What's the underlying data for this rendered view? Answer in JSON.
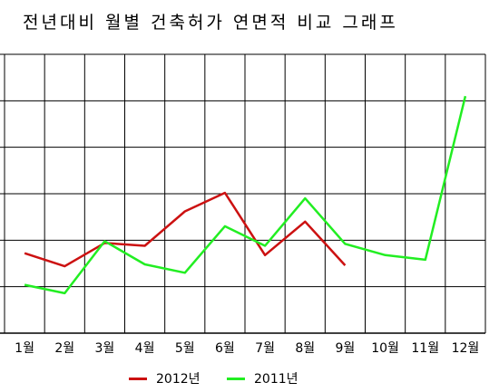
{
  "chart_data": {
    "type": "line",
    "title": "전년대비 월별 건축허가 연면적 비교 그래프",
    "categories": [
      "1월",
      "2월",
      "3월",
      "4월",
      "5월",
      "6월",
      "7월",
      "8월",
      "9월",
      "10월",
      "11월",
      "12월"
    ],
    "ylim": [
      0,
      6
    ],
    "grid": true,
    "legend_position": "bottom",
    "series": [
      {
        "name": "2012년",
        "color": "#cc1111",
        "values": [
          1.72,
          1.44,
          1.94,
          1.88,
          2.62,
          3.02,
          1.68,
          2.4,
          1.46,
          null,
          null,
          null
        ]
      },
      {
        "name": "2011년",
        "color": "#22ee22",
        "values": [
          1.04,
          0.86,
          1.98,
          1.48,
          1.3,
          2.3,
          1.88,
          2.9,
          1.92,
          1.68,
          1.58,
          5.1
        ]
      }
    ]
  }
}
